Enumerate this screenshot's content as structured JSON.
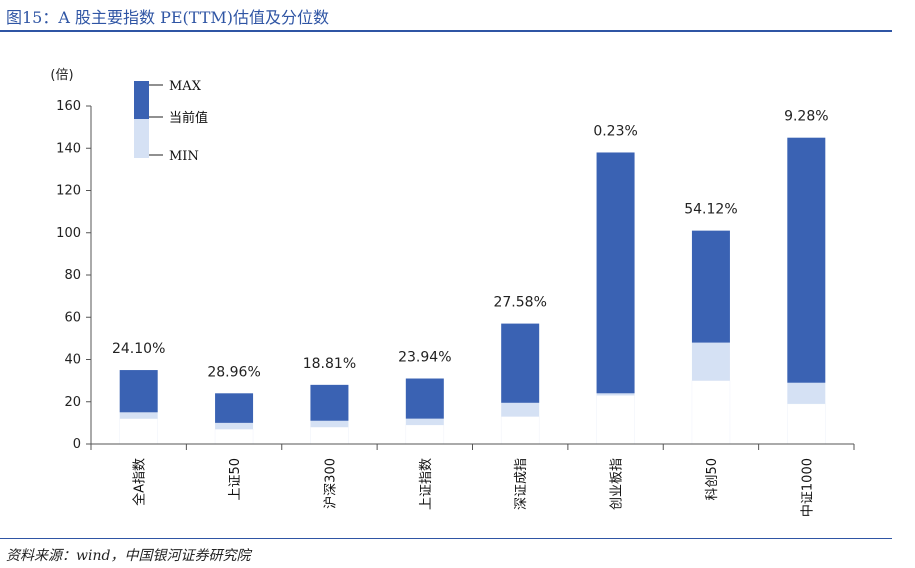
{
  "header": {
    "title": "图15：A 股主要指数 PE(TTM)估值及分位数"
  },
  "footer": {
    "source": "资料来源：wind，中国银河证券研究院"
  },
  "chart_data": {
    "type": "bar",
    "title": "",
    "ylabel": "(倍)",
    "xlabel": "",
    "ylim": [
      0,
      160
    ],
    "yticks": [
      0,
      20,
      40,
      60,
      80,
      100,
      120,
      140,
      160
    ],
    "grid": false,
    "legend_position": "top-left",
    "legend": {
      "max_label": "MAX",
      "current_label": "当前值",
      "min_label": "MIN"
    },
    "colors": {
      "max_segment": "#3a62b3",
      "current_segment": "#d5e1f4",
      "min_segment": "#ffffff",
      "axis": "#555555"
    },
    "categories": [
      "全A指数",
      "上证50",
      "沪深300",
      "上证指数",
      "深证成指",
      "创业板指",
      "科创50",
      "中证1000"
    ],
    "series": [
      {
        "name": "MIN",
        "values": [
          12,
          7,
          8,
          9,
          13,
          23,
          30,
          19
        ]
      },
      {
        "name": "当前值",
        "values": [
          15,
          10,
          11,
          12,
          19.5,
          24,
          48,
          29
        ]
      },
      {
        "name": "MAX",
        "values": [
          35,
          24,
          28,
          31,
          57,
          138,
          101,
          145
        ]
      }
    ],
    "percentile_labels": [
      "24.10%",
      "28.96%",
      "18.81%",
      "23.94%",
      "27.58%",
      "0.23%",
      "54.12%",
      "9.28%"
    ]
  }
}
